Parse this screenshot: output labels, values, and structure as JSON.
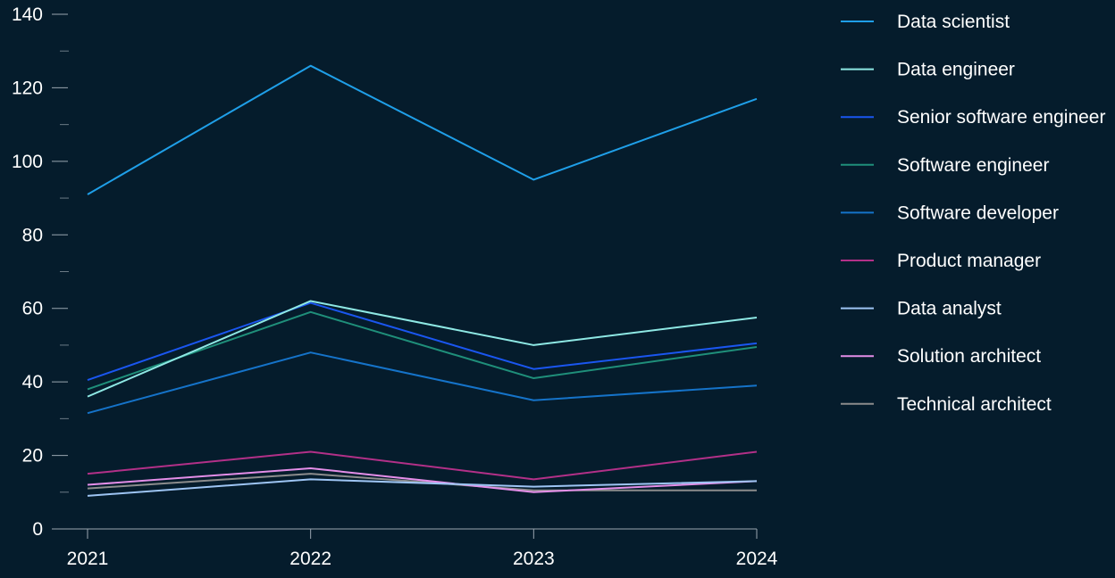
{
  "chart_data": {
    "type": "line",
    "title": "",
    "xlabel": "",
    "ylabel": "",
    "x": [
      "2021",
      "2022",
      "2023",
      "2024"
    ],
    "ylim": [
      0,
      140
    ],
    "yticks": [
      0,
      20,
      40,
      60,
      80,
      100,
      120,
      140
    ],
    "grid": false,
    "legend_position": "right",
    "series": [
      {
        "name": "Data scientist",
        "color": "#1f9fe8",
        "values": [
          91,
          126,
          95,
          117
        ]
      },
      {
        "name": "Data engineer",
        "color": "#8ee8e4",
        "values": [
          36,
          62,
          50,
          57.5
        ]
      },
      {
        "name": "Senior software engineer",
        "color": "#1a56f0",
        "values": [
          40.5,
          61.5,
          43.5,
          50.5
        ]
      },
      {
        "name": "Software engineer",
        "color": "#1f8f7a",
        "values": [
          38,
          59,
          41,
          49.5
        ]
      },
      {
        "name": "Software developer",
        "color": "#1573c9",
        "values": [
          31.5,
          48,
          35,
          39
        ]
      },
      {
        "name": "Product manager",
        "color": "#b23088",
        "values": [
          15,
          21,
          13.5,
          21
        ]
      },
      {
        "name": "Data analyst",
        "color": "#9ec5f4",
        "values": [
          9,
          13.5,
          11.5,
          13
        ]
      },
      {
        "name": "Solution architect",
        "color": "#e48ee8",
        "values": [
          12,
          16.5,
          10,
          13
        ]
      },
      {
        "name": "Technical architect",
        "color": "#8c8c8c",
        "values": [
          11,
          15,
          10.5,
          10.5
        ]
      }
    ]
  }
}
